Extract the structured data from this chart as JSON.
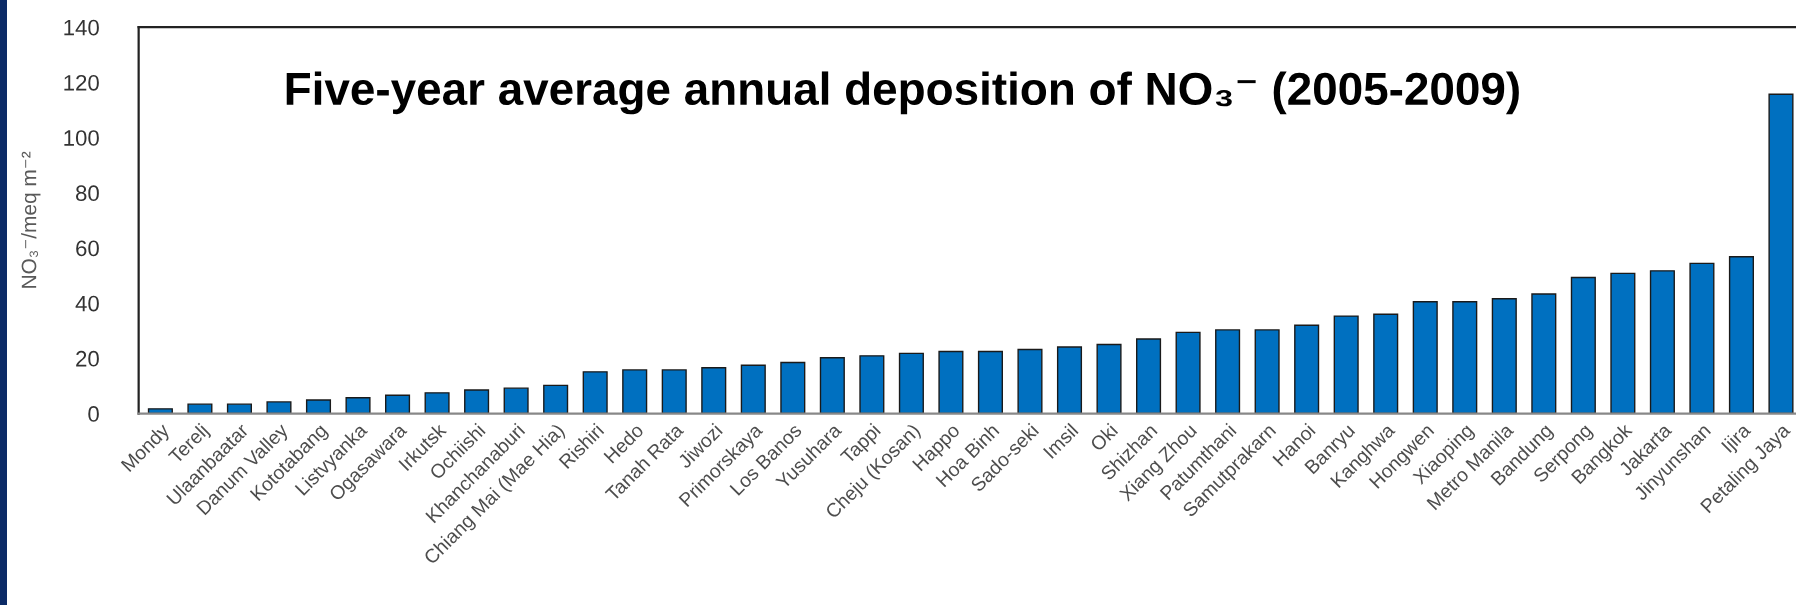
{
  "chart_data": {
    "type": "bar",
    "title": "Five-year average annual deposition of NO₃⁻ (2005-2009)",
    "ylabel": "NO₃⁻/meq m⁻²",
    "categories": [
      "Mondy",
      "Terelj",
      "Ulaanbaatar",
      "Danum Valley",
      "Kototabang",
      "Listvyanka",
      "Ogasawara",
      "Irkutsk",
      "Ochiishi",
      "Khanchanaburi",
      "Chiang Mai (Mae Hia)",
      "Rishiri",
      "Hedo",
      "Tanah Rata",
      "Jiwozi",
      "Primorskaya",
      "Los Banos",
      "Yusuhara",
      "Tappi",
      "Cheju (Kosan)",
      "Happo",
      "Hoa Binh",
      "Sado-seki",
      "Imsil",
      "Oki",
      "Shizhan",
      "Xiang Zhou",
      "Patumthani",
      "Samutprakarn",
      "Hanoi",
      "Banryu",
      "Kanghwa",
      "Hongwen",
      "Xiaoping",
      "Metro Manila",
      "Bandung",
      "Serpong",
      "Bangkok",
      "Jakarta",
      "Jinyunshan",
      "Ijira",
      "Petaling Jaya"
    ],
    "values": [
      1.7,
      3.4,
      3.4,
      4.2,
      4.9,
      5.7,
      6.6,
      7.5,
      8.5,
      9.2,
      10.2,
      15.1,
      15.8,
      15.8,
      16.6,
      17.5,
      18.5,
      20.2,
      20.9,
      21.8,
      22.5,
      22.5,
      23.2,
      24.1,
      25.0,
      27.0,
      29.4,
      30.3,
      30.3,
      32.0,
      35.3,
      36.0,
      40.5,
      40.5,
      41.6,
      43.3,
      49.3,
      50.8,
      51.7,
      54.4,
      56.8,
      115.7
    ],
    "color": "#0070c0",
    "ylim": [
      0,
      140
    ],
    "yticks": [
      0,
      20,
      40,
      60,
      80,
      100,
      120,
      140
    ]
  }
}
